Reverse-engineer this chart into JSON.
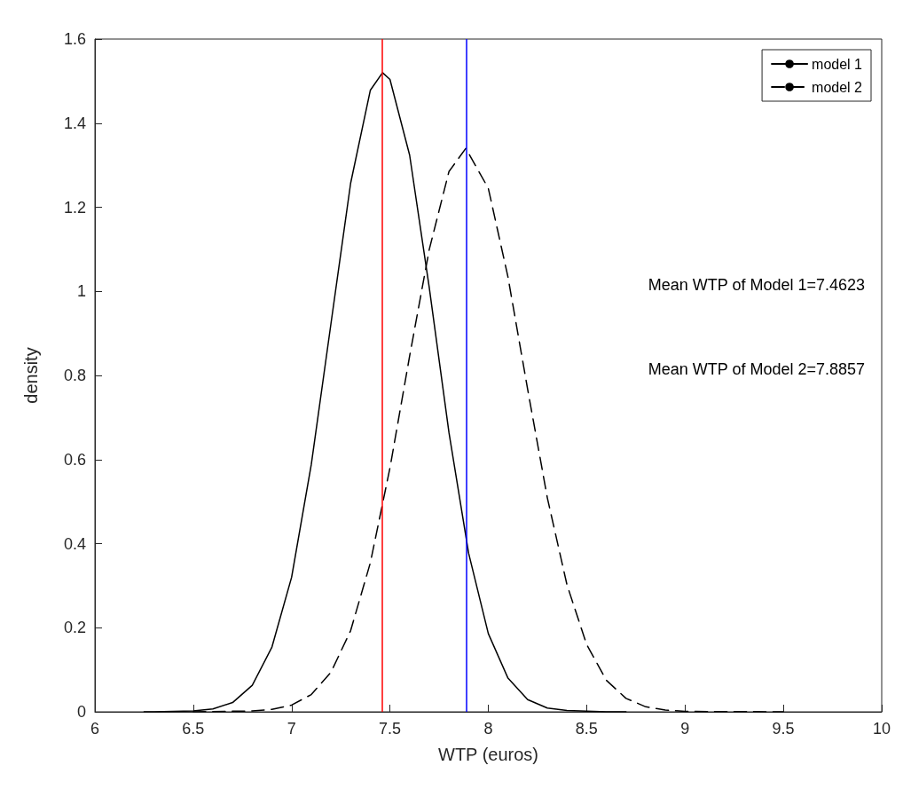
{
  "chart_data": {
    "type": "line",
    "xlabel": "WTP (euros)",
    "ylabel": "density",
    "xlim": [
      6,
      10
    ],
    "xticks": [
      6,
      6.5,
      7,
      7.5,
      8,
      8.5,
      9,
      9.5,
      10
    ],
    "ylim": [
      0,
      1.6
    ],
    "yticks": [
      0,
      0.2,
      0.4,
      0.6,
      0.8,
      1,
      1.2,
      1.4,
      1.6
    ],
    "grid": false,
    "legend": "top right",
    "marker": "none",
    "series": [
      {
        "name": "model 1",
        "color": "#000000",
        "line_style": "solid",
        "x": [
          6.25,
          6.3,
          6.5,
          6.6,
          6.7,
          6.8,
          6.9,
          7.0,
          7.1,
          7.2,
          7.3,
          7.4,
          7.4623,
          7.5,
          7.6,
          7.7,
          7.8,
          7.9,
          8.0,
          8.1,
          8.2,
          8.3,
          8.4,
          8.6,
          8.7
        ],
        "values": [
          0,
          0,
          0.002,
          0.007,
          0.022,
          0.063,
          0.154,
          0.32,
          0.588,
          0.923,
          1.257,
          1.478,
          1.52,
          1.504,
          1.324,
          1.008,
          0.664,
          0.377,
          0.186,
          0.08,
          0.029,
          0.009,
          0.003,
          0,
          0
        ]
      },
      {
        "name": "model 2",
        "color": "#000000",
        "line_style": "dashed",
        "x": [
          6.5,
          6.8,
          6.9,
          7.0,
          7.1,
          7.2,
          7.3,
          7.4,
          7.5,
          7.6,
          7.7,
          7.8,
          7.8857,
          8.0,
          8.1,
          8.2,
          8.3,
          8.4,
          8.5,
          8.6,
          8.7,
          8.8,
          8.9,
          9.0,
          9.5
        ],
        "values": [
          0,
          0.002,
          0.006,
          0.016,
          0.041,
          0.094,
          0.193,
          0.354,
          0.58,
          0.846,
          1.1,
          1.285,
          1.34,
          1.245,
          1.034,
          0.767,
          0.509,
          0.302,
          0.16,
          0.075,
          0.032,
          0.012,
          0.004,
          0.001,
          0
        ]
      }
    ],
    "ref_lines": [
      {
        "axis": "x",
        "value": 7.4623,
        "color": "#ff0000"
      },
      {
        "axis": "x",
        "value": 7.8857,
        "color": "#0000ff"
      }
    ],
    "annotations": [
      "Mean WTP of Model 1=7.4623",
      "Mean WTP of Model 2=7.8857"
    ]
  }
}
